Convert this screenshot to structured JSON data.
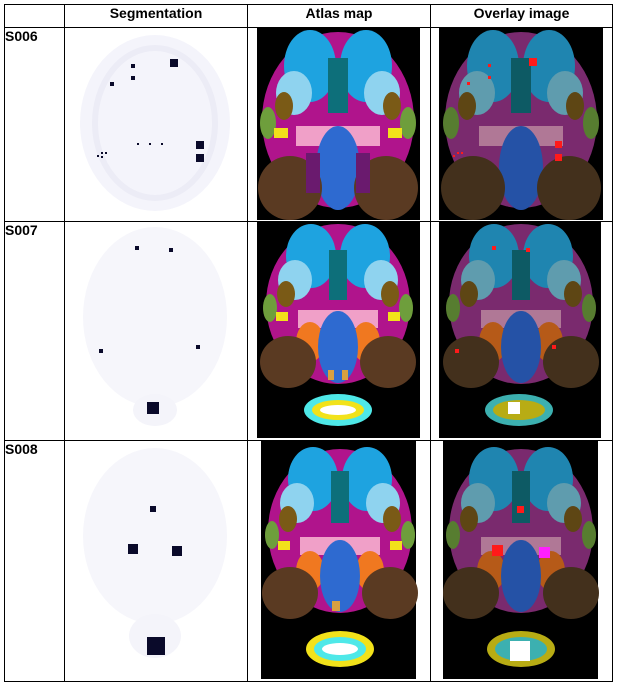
{
  "table": {
    "headers": [
      "",
      "Segmentation",
      "Atlas map",
      "Overlay image"
    ],
    "rows": [
      {
        "sample": "S006"
      },
      {
        "sample": "S007"
      },
      {
        "sample": "S008"
      }
    ]
  },
  "colors": {
    "background": "#000000",
    "olfactory": "#1ea3e0",
    "cortex_light": "#8fd3ef",
    "teal": "#0d6f7a",
    "magenta": "#b0148c",
    "olive": "#7a5a16",
    "green": "#6e9e3c",
    "yellow": "#f2e21a",
    "pink": "#f0a0c8",
    "blue_center": "#2e6ad0",
    "purple": "#6a1a6e",
    "brown": "#5a3a22",
    "salmon": "#e8706a",
    "orange": "#f07820",
    "cyan": "#4ee8e8",
    "white": "#ffffff",
    "marker_red": "#ff1a1a",
    "marker_magenta": "#ff20ff",
    "marker_dark": "#0a0a2a"
  }
}
